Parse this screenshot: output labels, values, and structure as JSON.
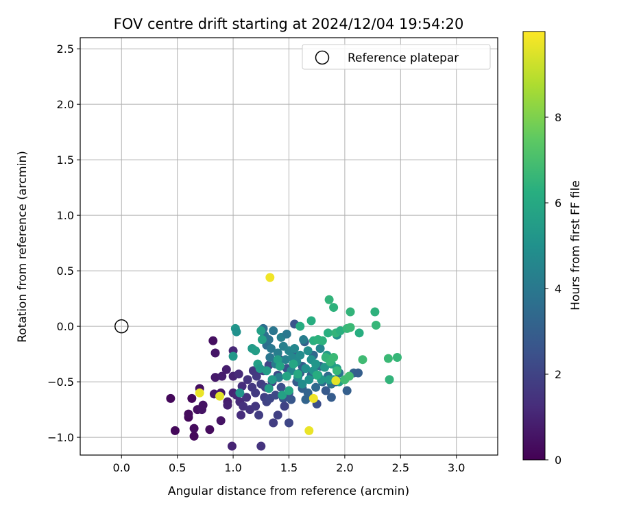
{
  "chart_data": {
    "type": "scatter",
    "title": "FOV centre drift starting at 2024/12/04 19:54:20",
    "xlabel": "Angular distance from reference (arcmin)",
    "ylabel": "Rotation from reference (arcmin)",
    "xlim": [
      -0.37,
      3.37
    ],
    "ylim": [
      -1.16,
      2.6
    ],
    "xticks": [
      "0.0",
      "0.5",
      "1.0",
      "1.5",
      "2.0",
      "2.5",
      "3.0"
    ],
    "yticks": [
      "−1.0",
      "−0.5",
      "0.0",
      "0.5",
      "1.0",
      "1.5",
      "2.0",
      "2.5"
    ],
    "grid": true,
    "legend": {
      "position": "top-right",
      "entries": [
        "Reference platepar"
      ]
    },
    "reference_point": {
      "x": 0.0,
      "y": 0.0,
      "marker": "open-circle"
    },
    "colorbar": {
      "label": "Hours from first FF file",
      "min": 0,
      "max": 10,
      "ticks": [
        "0",
        "2",
        "4",
        "6",
        "8"
      ],
      "colormap": "viridis"
    },
    "points": [
      {
        "x": 0.44,
        "y": -0.65,
        "h": 0.2
      },
      {
        "x": 0.48,
        "y": -0.94,
        "h": 0.2
      },
      {
        "x": 0.6,
        "y": -0.82,
        "h": 0.2
      },
      {
        "x": 0.6,
        "y": -0.79,
        "h": 0.3
      },
      {
        "x": 0.63,
        "y": -0.65,
        "h": 0.2
      },
      {
        "x": 0.65,
        "y": -0.92,
        "h": 0.3
      },
      {
        "x": 0.65,
        "y": -0.99,
        "h": 0.2
      },
      {
        "x": 0.68,
        "y": -0.75,
        "h": 0.4
      },
      {
        "x": 0.7,
        "y": -0.56,
        "h": 0.4
      },
      {
        "x": 0.72,
        "y": -0.75,
        "h": 0.5
      },
      {
        "x": 0.73,
        "y": -0.71,
        "h": 0.5
      },
      {
        "x": 0.79,
        "y": -0.93,
        "h": 0.3
      },
      {
        "x": 0.82,
        "y": -0.13,
        "h": 0.4
      },
      {
        "x": 0.83,
        "y": -0.61,
        "h": 0.6
      },
      {
        "x": 0.84,
        "y": -0.46,
        "h": 0.7
      },
      {
        "x": 0.84,
        "y": -0.24,
        "h": 0.6
      },
      {
        "x": 0.89,
        "y": -0.85,
        "h": 0.5
      },
      {
        "x": 0.89,
        "y": -0.6,
        "h": 0.6
      },
      {
        "x": 0.9,
        "y": -0.45,
        "h": 0.8
      },
      {
        "x": 0.94,
        "y": -0.39,
        "h": 0.8
      },
      {
        "x": 0.95,
        "y": -0.68,
        "h": 0.8
      },
      {
        "x": 0.95,
        "y": -0.71,
        "h": 0.9
      },
      {
        "x": 0.99,
        "y": -1.08,
        "h": 1.0
      },
      {
        "x": 1.0,
        "y": -0.45,
        "h": 1.0
      },
      {
        "x": 1.0,
        "y": -0.6,
        "h": 1.0
      },
      {
        "x": 1.0,
        "y": -0.22,
        "h": 1.1
      },
      {
        "x": 1.03,
        "y": -0.62,
        "h": 1.1
      },
      {
        "x": 1.05,
        "y": -0.43,
        "h": 1.2
      },
      {
        "x": 1.06,
        "y": -0.68,
        "h": 1.2
      },
      {
        "x": 1.07,
        "y": -0.8,
        "h": 1.3
      },
      {
        "x": 1.08,
        "y": -0.54,
        "h": 1.3
      },
      {
        "x": 1.09,
        "y": -0.72,
        "h": 1.4
      },
      {
        "x": 1.12,
        "y": -0.64,
        "h": 1.4
      },
      {
        "x": 1.13,
        "y": -0.48,
        "h": 1.5
      },
      {
        "x": 1.15,
        "y": -0.75,
        "h": 1.5
      },
      {
        "x": 1.17,
        "y": -0.55,
        "h": 1.6
      },
      {
        "x": 1.18,
        "y": -0.4,
        "h": 1.6
      },
      {
        "x": 1.2,
        "y": -0.72,
        "h": 1.6
      },
      {
        "x": 1.2,
        "y": -0.6,
        "h": 1.7
      },
      {
        "x": 1.21,
        "y": -0.45,
        "h": 1.7
      },
      {
        "x": 1.23,
        "y": -0.8,
        "h": 1.8
      },
      {
        "x": 1.25,
        "y": -1.08,
        "h": 1.5
      },
      {
        "x": 1.25,
        "y": -0.52,
        "h": 1.8
      },
      {
        "x": 1.27,
        "y": -0.4,
        "h": 1.9
      },
      {
        "x": 1.28,
        "y": -0.64,
        "h": 1.9
      },
      {
        "x": 1.29,
        "y": -0.55,
        "h": 2.0
      },
      {
        "x": 1.3,
        "y": -0.68,
        "h": 2.0
      },
      {
        "x": 1.32,
        "y": -0.35,
        "h": 2.1
      },
      {
        "x": 1.33,
        "y": -0.65,
        "h": 2.1
      },
      {
        "x": 1.35,
        "y": -0.5,
        "h": 2.2
      },
      {
        "x": 1.36,
        "y": -0.87,
        "h": 1.8
      },
      {
        "x": 1.38,
        "y": -0.62,
        "h": 2.2
      },
      {
        "x": 1.4,
        "y": -0.8,
        "h": 1.9
      },
      {
        "x": 1.4,
        "y": -0.44,
        "h": 2.3
      },
      {
        "x": 1.42,
        "y": -0.3,
        "h": 2.4
      },
      {
        "x": 1.43,
        "y": -0.55,
        "h": 2.4
      },
      {
        "x": 1.45,
        "y": -0.65,
        "h": 2.5
      },
      {
        "x": 1.46,
        "y": -0.72,
        "h": 2.0
      },
      {
        "x": 1.48,
        "y": -0.38,
        "h": 2.5
      },
      {
        "x": 1.5,
        "y": -0.87,
        "h": 2.1
      },
      {
        "x": 1.5,
        "y": -0.6,
        "h": 2.6
      },
      {
        "x": 1.52,
        "y": -0.66,
        "h": 2.7
      },
      {
        "x": 1.55,
        "y": -0.26,
        "h": 2.8
      },
      {
        "x": 1.55,
        "y": 0.02,
        "h": 2.6
      },
      {
        "x": 1.57,
        "y": -0.5,
        "h": 2.9
      },
      {
        "x": 1.6,
        "y": -0.42,
        "h": 3.0
      },
      {
        "x": 1.62,
        "y": -0.36,
        "h": 3.0
      },
      {
        "x": 1.62,
        "y": -0.56,
        "h": 3.1
      },
      {
        "x": 1.64,
        "y": -0.14,
        "h": 3.1
      },
      {
        "x": 1.65,
        "y": -0.66,
        "h": 3.2
      },
      {
        "x": 1.67,
        "y": -0.6,
        "h": 3.2
      },
      {
        "x": 1.7,
        "y": -0.44,
        "h": 3.3
      },
      {
        "x": 1.72,
        "y": -0.26,
        "h": 3.4
      },
      {
        "x": 1.74,
        "y": -0.55,
        "h": 3.4
      },
      {
        "x": 1.75,
        "y": -0.7,
        "h": 2.4
      },
      {
        "x": 1.78,
        "y": -0.36,
        "h": 3.5
      },
      {
        "x": 1.8,
        "y": -0.5,
        "h": 3.5
      },
      {
        "x": 1.83,
        "y": -0.58,
        "h": 2.8
      },
      {
        "x": 1.85,
        "y": -0.45,
        "h": 3.6
      },
      {
        "x": 1.88,
        "y": -0.64,
        "h": 2.9
      },
      {
        "x": 1.88,
        "y": -0.52,
        "h": 3.7
      },
      {
        "x": 1.92,
        "y": -0.5,
        "h": 2.8
      },
      {
        "x": 1.95,
        "y": -0.42,
        "h": 3.8
      },
      {
        "x": 2.02,
        "y": -0.58,
        "h": 3.0
      },
      {
        "x": 2.08,
        "y": -0.42,
        "h": 3.2
      },
      {
        "x": 2.12,
        "y": -0.42,
        "h": 3.0
      },
      {
        "x": 1.27,
        "y": -0.02,
        "h": 3.6
      },
      {
        "x": 1.28,
        "y": -0.08,
        "h": 3.7
      },
      {
        "x": 1.3,
        "y": -0.17,
        "h": 3.6
      },
      {
        "x": 1.32,
        "y": -0.12,
        "h": 3.8
      },
      {
        "x": 1.33,
        "y": -0.28,
        "h": 3.9
      },
      {
        "x": 1.34,
        "y": -0.2,
        "h": 4.0
      },
      {
        "x": 1.36,
        "y": -0.04,
        "h": 3.9
      },
      {
        "x": 1.38,
        "y": -0.34,
        "h": 4.1
      },
      {
        "x": 1.4,
        "y": -0.24,
        "h": 4.2
      },
      {
        "x": 1.41,
        "y": -0.46,
        "h": 4.2
      },
      {
        "x": 1.43,
        "y": -0.1,
        "h": 4.3
      },
      {
        "x": 1.45,
        "y": -0.18,
        "h": 4.3
      },
      {
        "x": 1.47,
        "y": -0.3,
        "h": 4.4
      },
      {
        "x": 1.48,
        "y": -0.07,
        "h": 4.0
      },
      {
        "x": 1.5,
        "y": -0.22,
        "h": 4.5
      },
      {
        "x": 1.52,
        "y": -0.4,
        "h": 4.5
      },
      {
        "x": 1.53,
        "y": -0.28,
        "h": 4.6
      },
      {
        "x": 1.55,
        "y": -0.2,
        "h": 4.6
      },
      {
        "x": 1.57,
        "y": -0.32,
        "h": 4.7
      },
      {
        "x": 1.58,
        "y": -0.46,
        "h": 4.7
      },
      {
        "x": 1.6,
        "y": -0.26,
        "h": 4.8
      },
      {
        "x": 1.62,
        "y": -0.52,
        "h": 4.8
      },
      {
        "x": 1.63,
        "y": -0.12,
        "h": 4.2
      },
      {
        "x": 1.65,
        "y": -0.38,
        "h": 4.9
      },
      {
        "x": 1.67,
        "y": -0.22,
        "h": 4.9
      },
      {
        "x": 1.68,
        "y": -0.48,
        "h": 5.0
      },
      {
        "x": 1.7,
        "y": -0.3,
        "h": 5.0
      },
      {
        "x": 1.72,
        "y": -0.4,
        "h": 5.1
      },
      {
        "x": 1.74,
        "y": -0.34,
        "h": 5.2
      },
      {
        "x": 1.76,
        "y": -0.44,
        "h": 5.2
      },
      {
        "x": 1.78,
        "y": -0.2,
        "h": 4.5
      },
      {
        "x": 1.79,
        "y": -0.48,
        "h": 5.3
      },
      {
        "x": 1.82,
        "y": -0.37,
        "h": 5.3
      },
      {
        "x": 1.84,
        "y": -0.26,
        "h": 5.4
      },
      {
        "x": 1.86,
        "y": -0.48,
        "h": 5.4
      },
      {
        "x": 1.88,
        "y": -0.34,
        "h": 5.5
      },
      {
        "x": 1.9,
        "y": -0.48,
        "h": 5.5
      },
      {
        "x": 1.93,
        "y": -0.38,
        "h": 5.6
      },
      {
        "x": 1.95,
        "y": -0.5,
        "h": 5.6
      },
      {
        "x": 1.93,
        "y": -0.08,
        "h": 5.0
      },
      {
        "x": 1.02,
        "y": -0.02,
        "h": 5.2
      },
      {
        "x": 1.03,
        "y": -0.05,
        "h": 5.0
      },
      {
        "x": 1.0,
        "y": -0.27,
        "h": 5.3
      },
      {
        "x": 1.06,
        "y": -0.6,
        "h": 5.1
      },
      {
        "x": 1.17,
        "y": -0.2,
        "h": 5.4
      },
      {
        "x": 1.2,
        "y": -0.22,
        "h": 5.5
      },
      {
        "x": 1.22,
        "y": -0.34,
        "h": 5.6
      },
      {
        "x": 1.24,
        "y": -0.38,
        "h": 5.3
      },
      {
        "x": 1.25,
        "y": -0.04,
        "h": 5.6
      },
      {
        "x": 1.26,
        "y": -0.12,
        "h": 5.7
      },
      {
        "x": 1.3,
        "y": -0.4,
        "h": 5.5
      },
      {
        "x": 1.32,
        "y": -0.56,
        "h": 5.6
      },
      {
        "x": 1.35,
        "y": -0.48,
        "h": 5.4
      },
      {
        "x": 1.4,
        "y": -0.3,
        "h": 5.6
      },
      {
        "x": 1.42,
        "y": -0.36,
        "h": 5.8
      },
      {
        "x": 1.44,
        "y": -0.62,
        "h": 5.7
      },
      {
        "x": 1.48,
        "y": -0.45,
        "h": 5.8
      },
      {
        "x": 1.5,
        "y": -0.58,
        "h": 6.0
      },
      {
        "x": 1.54,
        "y": -0.34,
        "h": 5.9
      },
      {
        "x": 1.58,
        "y": -0.43,
        "h": 6.0
      },
      {
        "x": 1.6,
        "y": 0.0,
        "h": 6.1
      },
      {
        "x": 1.7,
        "y": 0.05,
        "h": 6.2
      },
      {
        "x": 1.72,
        "y": -0.13,
        "h": 6.3
      },
      {
        "x": 1.75,
        "y": -0.44,
        "h": 6.2
      },
      {
        "x": 1.76,
        "y": -0.12,
        "h": 6.4
      },
      {
        "x": 1.8,
        "y": -0.13,
        "h": 6.4
      },
      {
        "x": 1.83,
        "y": -0.28,
        "h": 6.5
      },
      {
        "x": 1.85,
        "y": -0.06,
        "h": 6.3
      },
      {
        "x": 1.87,
        "y": -0.32,
        "h": 6.6
      },
      {
        "x": 1.86,
        "y": 0.24,
        "h": 6.5
      },
      {
        "x": 1.9,
        "y": 0.17,
        "h": 6.4
      },
      {
        "x": 1.9,
        "y": -0.28,
        "h": 6.7
      },
      {
        "x": 1.92,
        "y": -0.06,
        "h": 6.5
      },
      {
        "x": 1.93,
        "y": -0.4,
        "h": 6.6
      },
      {
        "x": 1.96,
        "y": -0.04,
        "h": 6.3
      },
      {
        "x": 2.0,
        "y": -0.48,
        "h": 6.8
      },
      {
        "x": 2.02,
        "y": -0.02,
        "h": 6.6
      },
      {
        "x": 2.04,
        "y": -0.45,
        "h": 6.9
      },
      {
        "x": 2.05,
        "y": 0.13,
        "h": 6.5
      },
      {
        "x": 2.05,
        "y": -0.01,
        "h": 6.7
      },
      {
        "x": 2.13,
        "y": -0.06,
        "h": 6.2
      },
      {
        "x": 2.16,
        "y": -0.3,
        "h": 6.8
      },
      {
        "x": 2.27,
        "y": 0.13,
        "h": 6.4
      },
      {
        "x": 2.28,
        "y": 0.01,
        "h": 6.6
      },
      {
        "x": 2.39,
        "y": -0.29,
        "h": 6.7
      },
      {
        "x": 2.4,
        "y": -0.48,
        "h": 6.5
      },
      {
        "x": 2.47,
        "y": -0.28,
        "h": 6.6
      },
      {
        "x": 1.33,
        "y": 0.44,
        "h": 9.8
      },
      {
        "x": 0.7,
        "y": -0.6,
        "h": 9.7
      },
      {
        "x": 0.88,
        "y": -0.63,
        "h": 9.6
      },
      {
        "x": 1.68,
        "y": -0.94,
        "h": 9.7
      },
      {
        "x": 1.72,
        "y": -0.65,
        "h": 9.8
      },
      {
        "x": 1.92,
        "y": -0.49,
        "h": 9.6
      }
    ]
  }
}
